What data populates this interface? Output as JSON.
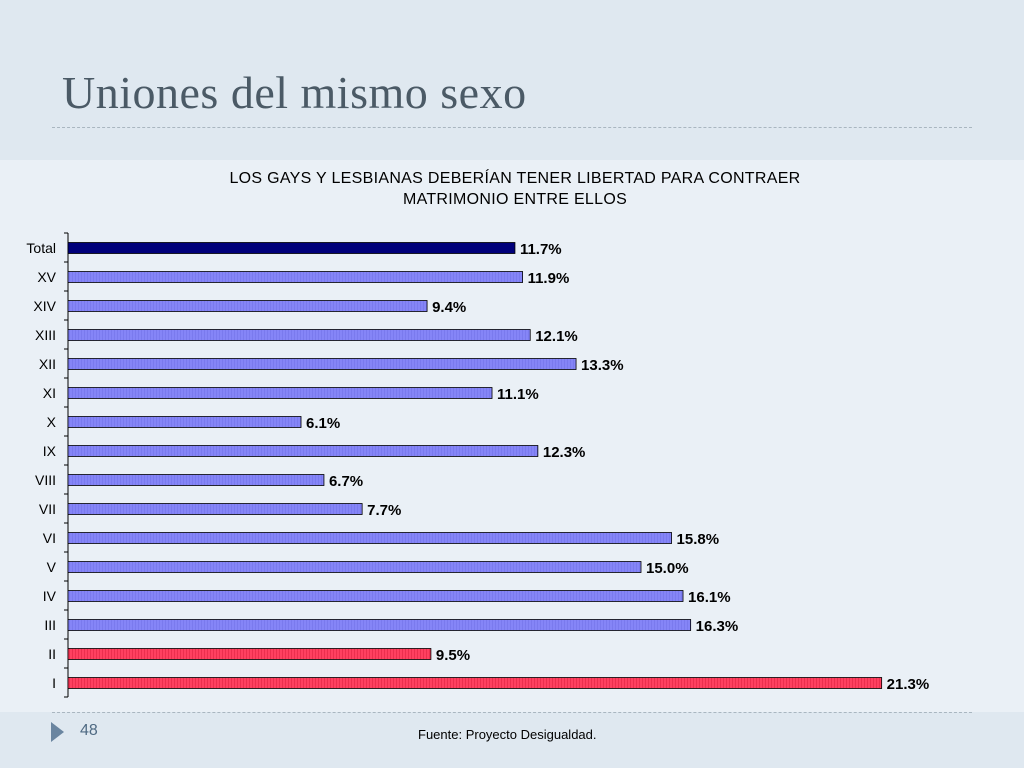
{
  "slide": {
    "title": "Uniones del mismo sexo",
    "page_number": "48",
    "source": "Fuente: Proyecto Desigualdad."
  },
  "colors": {
    "total": "#00007a",
    "region": "#7f7ff5",
    "highlight": "#ff3355"
  },
  "chart_data": {
    "type": "bar",
    "orientation": "horizontal",
    "title_lines": [
      "LOS GAYS Y LESBIANAS DEBERÍAN TENER LIBERTAD PARA CONTRAER",
      "MATRIMONIO ENTRE ELLOS"
    ],
    "categories": [
      "Total",
      "XV",
      "XIV",
      "XIII",
      "XII",
      "XI",
      "X",
      "IX",
      "VIII",
      "VII",
      "VI",
      "V",
      "IV",
      "III",
      "II",
      "I"
    ],
    "values": [
      11.7,
      11.9,
      9.4,
      12.1,
      13.3,
      11.1,
      6.1,
      12.3,
      6.7,
      7.7,
      15.8,
      15.0,
      16.1,
      16.3,
      9.5,
      21.3
    ],
    "labels": [
      "11.7%",
      "11.9%",
      "9.4%",
      "12.1%",
      "13.3%",
      "11.1%",
      "6.1%",
      "12.3%",
      "6.7%",
      "7.7%",
      "15.8%",
      "15.0%",
      "16.1%",
      "16.3%",
      "9.5%",
      "21.3%"
    ],
    "bar_groups": [
      "total",
      "region",
      "region",
      "region",
      "region",
      "region",
      "region",
      "region",
      "region",
      "region",
      "region",
      "region",
      "region",
      "region",
      "highlight",
      "highlight"
    ],
    "xlim": [
      0,
      21.3
    ],
    "grid": false,
    "legend": "none"
  }
}
